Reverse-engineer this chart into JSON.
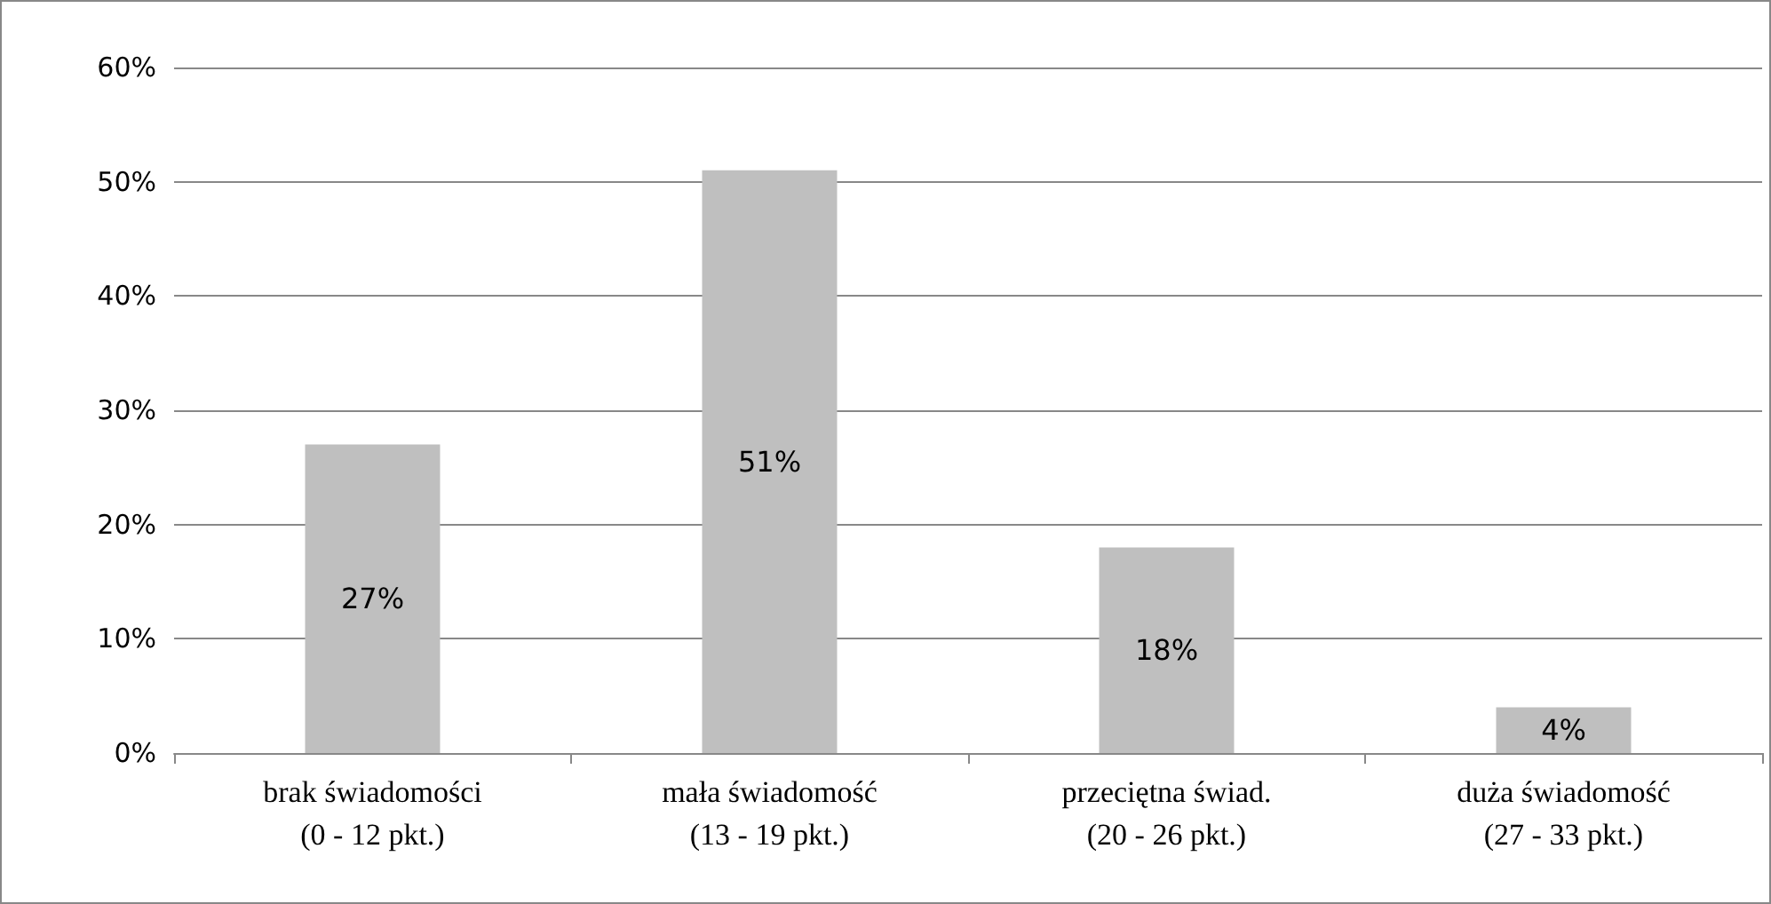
{
  "chart_data": {
    "type": "bar",
    "categories": [
      "brak świadomości\n(0 - 12 pkt.)",
      "mała świadomość\n(13 - 19 pkt.)",
      "przeciętna świad.\n(20 - 26 pkt.)",
      "duża świadomość\n(27 - 33 pkt.)"
    ],
    "values": [
      27,
      51,
      18,
      4
    ],
    "value_labels": [
      "27%",
      "51%",
      "18%",
      "4%"
    ],
    "color": "#bfbfbf",
    "ylim": [
      0,
      60
    ],
    "yticks": [
      {
        "value": 0,
        "label": "0%"
      },
      {
        "value": 10,
        "label": "10%"
      },
      {
        "value": 20,
        "label": "20%"
      },
      {
        "value": 30,
        "label": "30%"
      },
      {
        "value": 40,
        "label": "40%"
      },
      {
        "value": 50,
        "label": "50%"
      },
      {
        "value": 60,
        "label": "60%"
      }
    ],
    "grid": "y"
  }
}
